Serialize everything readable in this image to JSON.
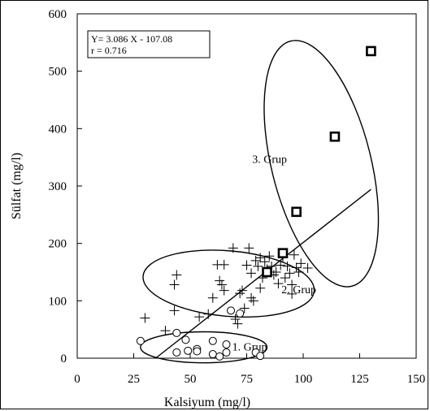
{
  "chart_data": {
    "type": "scatter",
    "xlabel": "Kalsiyum (mg/l)",
    "ylabel": "Sülfat (mg/l)",
    "xlim": [
      0,
      150
    ],
    "ylim": [
      0,
      600
    ],
    "xticks": [
      0,
      25,
      50,
      75,
      100,
      125,
      150
    ],
    "yticks": [
      0,
      100,
      200,
      300,
      400,
      500,
      600
    ],
    "grid": false,
    "regression": {
      "equation": "Y= 3.086 X - 107.08",
      "r_label": "r = 0.716",
      "slope": 3.086,
      "intercept": -107.08,
      "x_range": [
        34.7,
        130
      ]
    },
    "series": [
      {
        "marker": "circle",
        "points": [
          [
            28,
            30
          ],
          [
            44,
            44
          ],
          [
            44,
            10
          ],
          [
            48,
            32
          ],
          [
            49,
            13
          ],
          [
            53,
            16
          ],
          [
            53,
            12
          ],
          [
            60,
            30
          ],
          [
            60,
            7
          ],
          [
            63,
            3
          ],
          [
            66,
            24
          ],
          [
            66,
            10
          ],
          [
            68,
            83
          ],
          [
            72,
            78
          ],
          [
            79,
            10
          ],
          [
            81,
            4
          ]
        ]
      },
      {
        "marker": "plus",
        "points": [
          [
            30,
            70
          ],
          [
            39,
            48
          ],
          [
            43,
            128
          ],
          [
            43,
            83
          ],
          [
            44,
            145
          ],
          [
            54,
            72
          ],
          [
            58,
            77
          ],
          [
            60,
            105
          ],
          [
            62,
            163
          ],
          [
            63,
            135
          ],
          [
            64,
            128
          ],
          [
            65,
            163
          ],
          [
            65,
            118
          ],
          [
            69,
            192
          ],
          [
            70,
            68
          ],
          [
            71,
            60
          ],
          [
            72,
            113
          ],
          [
            73,
            118
          ],
          [
            74,
            87
          ],
          [
            75,
            162
          ],
          [
            76,
            192
          ],
          [
            77,
            148
          ],
          [
            77,
            105
          ],
          [
            78,
            100
          ],
          [
            79,
            170
          ],
          [
            80,
            160
          ],
          [
            81,
            175
          ],
          [
            81,
            122
          ],
          [
            82,
            140
          ],
          [
            83,
            168
          ],
          [
            84,
            155
          ],
          [
            85,
            178
          ],
          [
            86,
            160
          ],
          [
            87,
            145
          ],
          [
            88,
            150
          ],
          [
            89,
            130
          ],
          [
            90,
            162
          ],
          [
            91,
            175
          ],
          [
            92,
            140
          ],
          [
            93,
            160
          ],
          [
            94,
            148
          ],
          [
            95,
            128
          ],
          [
            95,
            112
          ],
          [
            96,
            180
          ],
          [
            97,
            158
          ],
          [
            98,
            150
          ],
          [
            99,
            165
          ],
          [
            102,
            157
          ]
        ]
      },
      {
        "marker": "square",
        "points": [
          [
            84,
            150
          ],
          [
            91,
            183
          ],
          [
            97,
            255
          ],
          [
            114,
            386
          ],
          [
            130,
            535
          ]
        ]
      }
    ],
    "groups": [
      {
        "label": "1. Grup",
        "cx": 56,
        "cy": 19,
        "rx": 28,
        "ry": 27,
        "angle_deg": 0
      },
      {
        "label": "2. Grup",
        "cx": 67,
        "cy": 130,
        "rx": 38,
        "ry": 57,
        "angle_deg": 5
      },
      {
        "label": "3. Grup",
        "cx": 108,
        "cy": 339,
        "rx": 22,
        "ry": 220,
        "angle_deg": -14
      }
    ]
  }
}
